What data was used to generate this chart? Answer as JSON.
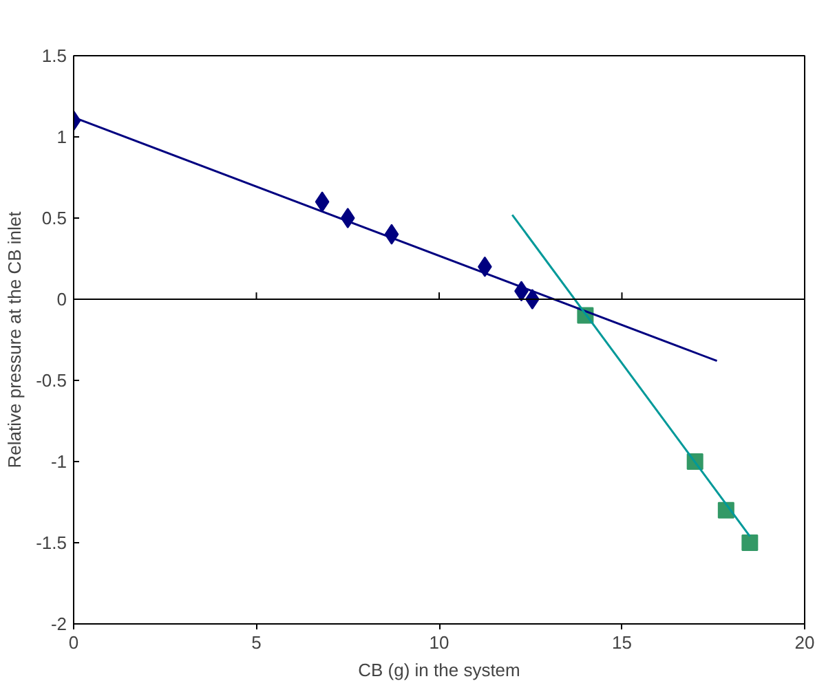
{
  "chart_data": {
    "type": "scatter",
    "xlabel": "CB (g) in the system",
    "ylabel": "Relative pressure at the CB inlet",
    "xlim": [
      0,
      20
    ],
    "ylim": [
      -2,
      1.5
    ],
    "xticks": [
      0,
      5,
      10,
      15,
      20
    ],
    "yticks": [
      -2,
      -1.5,
      -1,
      -0.5,
      0,
      0.5,
      1,
      1.5
    ],
    "grid": false,
    "ref_lines": [
      {
        "axis": "y",
        "value": 0
      }
    ],
    "series": [
      {
        "type": "scatter",
        "marker": "diamond",
        "color": "#000080",
        "x": [
          0,
          6.8,
          7.5,
          8.7,
          11.25,
          12.25,
          12.55
        ],
        "values": [
          1.1,
          0.6,
          0.5,
          0.4,
          0.2,
          0.05,
          0
        ]
      },
      {
        "type": "scatter",
        "marker": "square",
        "color": "#339966",
        "x": [
          14,
          17,
          17.85,
          18.5
        ],
        "values": [
          -0.1,
          -1,
          -1.3,
          -1.5
        ]
      },
      {
        "type": "line",
        "marker": "none",
        "color": "#000080",
        "x": [
          0,
          17.6
        ],
        "values": [
          1.12,
          -0.38
        ]
      },
      {
        "type": "line",
        "marker": "none",
        "color": "#009999",
        "x": [
          12,
          18.5
        ],
        "values": [
          0.52,
          -1.46
        ]
      }
    ]
  }
}
